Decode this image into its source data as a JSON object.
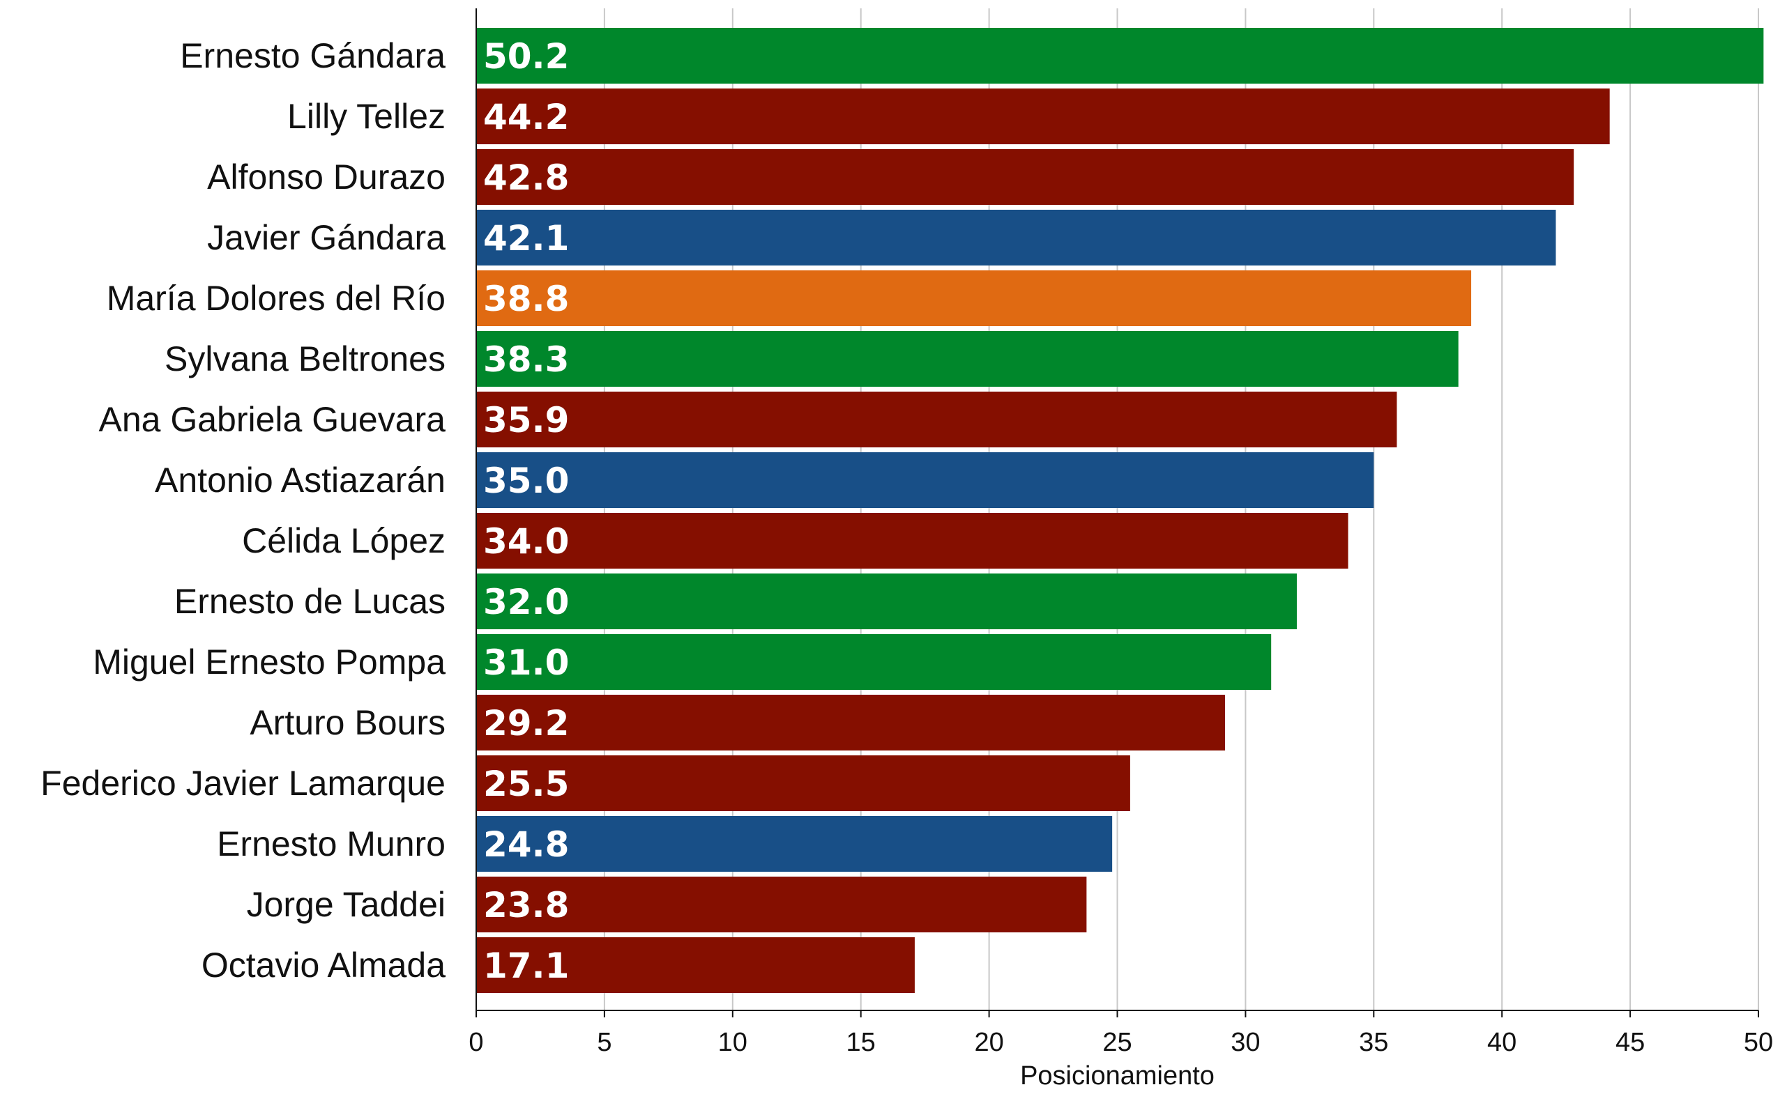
{
  "chart_data": {
    "type": "bar",
    "orientation": "horizontal",
    "title": "",
    "xlabel": "Posicionamiento",
    "ylabel": "",
    "xlim": [
      0,
      50
    ],
    "x_ticks": [
      0,
      5,
      10,
      15,
      20,
      25,
      30,
      35,
      40,
      45,
      50
    ],
    "grid": "vertical",
    "legend": "none",
    "categories": [
      "Ernesto Gándara",
      "Lilly Tellez",
      "Alfonso Durazo",
      "Javier Gándara",
      "María Dolores del Río",
      "Sylvana Beltrones",
      "Ana Gabriela Guevara",
      "Antonio Astiazarán",
      "Célida López",
      "Ernesto de Lucas",
      "Miguel Ernesto Pompa",
      "Arturo Bours",
      "Federico Javier Lamarque",
      "Ernesto Munro",
      "Jorge Taddei",
      "Octavio Almada"
    ],
    "values": [
      50.2,
      44.2,
      42.8,
      42.1,
      38.8,
      38.3,
      35.9,
      35.0,
      34.0,
      32.0,
      31.0,
      29.2,
      25.5,
      24.8,
      23.8,
      17.1
    ],
    "value_labels": [
      "50.2",
      "44.2",
      "42.8",
      "42.1",
      "38.8",
      "38.3",
      "35.9",
      "35.0",
      "34.0",
      "32.0",
      "31.0",
      "29.2",
      "25.5",
      "24.8",
      "23.8",
      "17.1"
    ],
    "bar_colors": [
      "#00872b",
      "#850f00",
      "#850f00",
      "#184f87",
      "#e06a12",
      "#00872b",
      "#850f00",
      "#184f87",
      "#850f00",
      "#00872b",
      "#00872b",
      "#850f00",
      "#850f00",
      "#184f87",
      "#850f00",
      "#850f00"
    ]
  }
}
